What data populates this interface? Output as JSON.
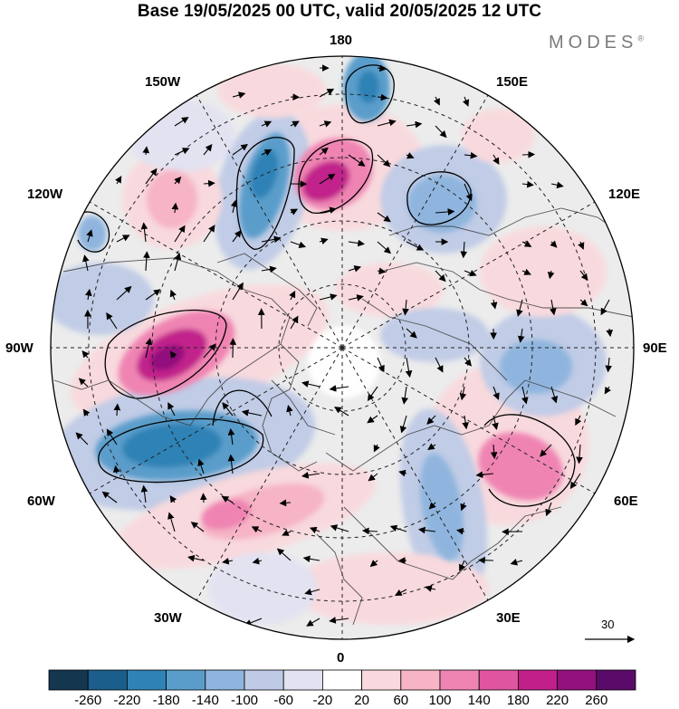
{
  "title": "Base 19/05/2025 00 UTC, valid 20/05/2025 12 UTC",
  "brand": "MODES",
  "brand_mark": "®",
  "longitude_labels": {
    "top": "180",
    "bottom": "0",
    "left": "90W",
    "right": "90E",
    "w150": "150W",
    "w120": "120W",
    "w60": "60W",
    "w30": "30W",
    "e150": "150E",
    "e120": "120E",
    "e60": "60E",
    "e30": "30E"
  },
  "reference_vector_label": "30",
  "colorbar": {
    "ticks": [
      "-260",
      "-220",
      "-180",
      "-140",
      "-100",
      "-60",
      "-20",
      "20",
      "60",
      "100",
      "140",
      "180",
      "220",
      "260"
    ],
    "colors": [
      "#15364f",
      "#1b5e8c",
      "#2f82b6",
      "#5a9dcb",
      "#8fb5de",
      "#bfcbe6",
      "#e2e2f2",
      "#ffffff",
      "#f9d9dd",
      "#f6b4c5",
      "#ef84b2",
      "#e0559f",
      "#c1208b",
      "#92117d",
      "#5a0b6a"
    ]
  },
  "anomaly_blobs": [
    {
      "name": "anomaly-positive-90w",
      "sign": "positive",
      "peak": "220"
    },
    {
      "name": "anomaly-negative-75w",
      "sign": "negative",
      "peak": "-180"
    },
    {
      "name": "anomaly-positive-170e",
      "sign": "positive",
      "peak": "180"
    },
    {
      "name": "anomaly-negative-155w",
      "sign": "negative",
      "peak": "-140"
    },
    {
      "name": "anomaly-negative-180",
      "sign": "negative",
      "peak": "-140"
    },
    {
      "name": "anomaly-negative-150e",
      "sign": "negative",
      "peak": "-100"
    },
    {
      "name": "anomaly-positive-60e",
      "sign": "positive",
      "peak": "140"
    },
    {
      "name": "anomaly-negative-90e",
      "sign": "negative",
      "peak": "-100"
    },
    {
      "name": "anomaly-negative-30e",
      "sign": "negative",
      "peak": "-100"
    },
    {
      "name": "anomaly-positive-40w",
      "sign": "positive",
      "peak": "140"
    },
    {
      "name": "anomaly-positive-120w",
      "sign": "positive",
      "peak": "60"
    },
    {
      "name": "anomaly-negative-130w",
      "sign": "negative",
      "peak": "-100"
    }
  ]
}
